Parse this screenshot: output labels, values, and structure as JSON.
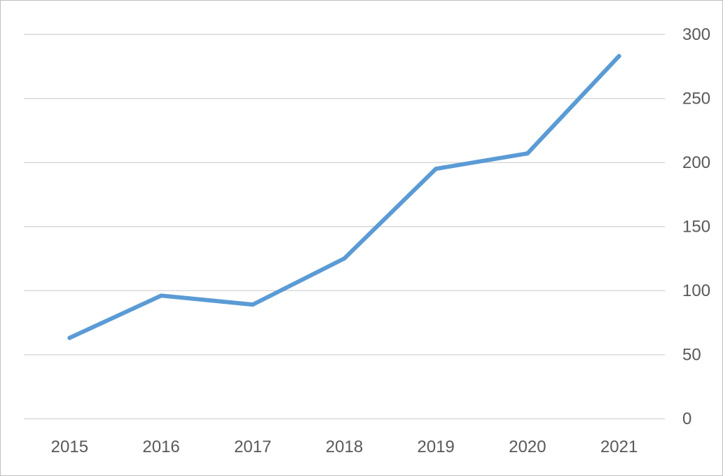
{
  "chart_data": {
    "type": "line",
    "title": "",
    "xlabel": "",
    "ylabel": "",
    "categories": [
      "2015",
      "2016",
      "2017",
      "2018",
      "2019",
      "2020",
      "2021"
    ],
    "series": [
      {
        "values": [
          63,
          96,
          89,
          125,
          195,
          207,
          283
        ],
        "color": "#5b9bd5"
      }
    ],
    "yaxis": {
      "position": "right",
      "min": 0,
      "max": 300,
      "step": 50,
      "tick_labels": [
        "0",
        "50",
        "100",
        "150",
        "200",
        "250",
        "300"
      ]
    },
    "grid": true,
    "legend": "none"
  }
}
